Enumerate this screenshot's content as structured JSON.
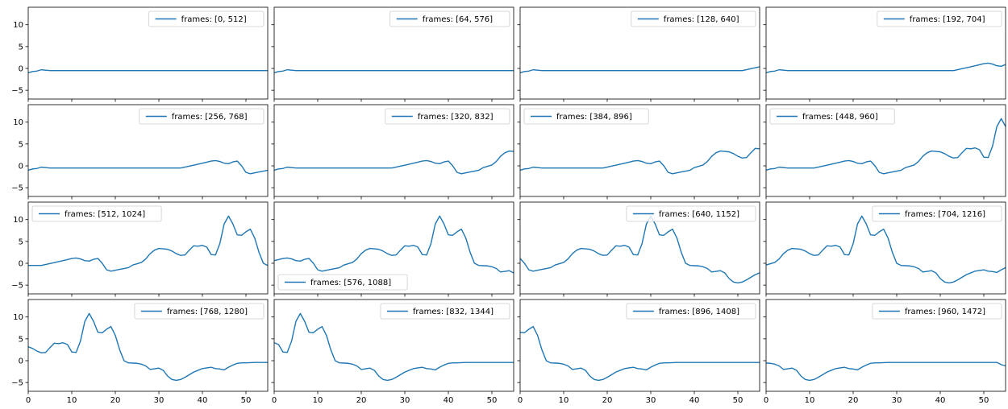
{
  "figure": {
    "rows": 4,
    "cols": 4,
    "sharex": true,
    "sharey": true,
    "line_color": "#1f77b4"
  },
  "chart_data": {
    "type": "line",
    "xlim": [
      0,
      55
    ],
    "ylim": [
      -7,
      14
    ],
    "x_ticks": [
      0,
      10,
      20,
      30,
      40,
      50
    ],
    "y_ticks": [
      -5,
      0,
      5,
      10
    ],
    "grid": false,
    "signal": [
      {
        "x": 0,
        "y": -0.5
      },
      {
        "x": 67,
        "y": -0.5
      },
      {
        "x": 72,
        "y": 0.6
      },
      {
        "x": 74,
        "y": 1.1
      },
      {
        "x": 75,
        "y": 1.2
      },
      {
        "x": 76,
        "y": 1.0
      },
      {
        "x": 77,
        "y": 0.6
      },
      {
        "x": 78,
        "y": 0.5
      },
      {
        "x": 79,
        "y": 0.9
      },
      {
        "x": 80,
        "y": 1.1
      },
      {
        "x": 81,
        "y": 0.0
      },
      {
        "x": 82,
        "y": -1.5
      },
      {
        "x": 83,
        "y": -1.8
      },
      {
        "x": 85,
        "y": -1.4
      },
      {
        "x": 87,
        "y": -1.0
      },
      {
        "x": 88,
        "y": -0.4
      },
      {
        "x": 90,
        "y": 0.2
      },
      {
        "x": 91,
        "y": 1.0
      },
      {
        "x": 92,
        "y": 2.2
      },
      {
        "x": 93,
        "y": 3.0
      },
      {
        "x": 94,
        "y": 3.4
      },
      {
        "x": 96,
        "y": 3.2
      },
      {
        "x": 97,
        "y": 2.8
      },
      {
        "x": 98,
        "y": 2.2
      },
      {
        "x": 99,
        "y": 1.8
      },
      {
        "x": 100,
        "y": 1.9
      },
      {
        "x": 101,
        "y": 3.0
      },
      {
        "x": 102,
        "y": 4.0
      },
      {
        "x": 103,
        "y": 3.9
      },
      {
        "x": 104,
        "y": 4.1
      },
      {
        "x": 105,
        "y": 3.7
      },
      {
        "x": 106,
        "y": 2.0
      },
      {
        "x": 107,
        "y": 1.9
      },
      {
        "x": 108,
        "y": 4.5
      },
      {
        "x": 109,
        "y": 9.0
      },
      {
        "x": 110,
        "y": 10.8
      },
      {
        "x": 111,
        "y": 9.0
      },
      {
        "x": 112,
        "y": 6.5
      },
      {
        "x": 113,
        "y": 6.4
      },
      {
        "x": 114,
        "y": 7.2
      },
      {
        "x": 115,
        "y": 7.8
      },
      {
        "x": 116,
        "y": 5.8
      },
      {
        "x": 117,
        "y": 2.5
      },
      {
        "x": 118,
        "y": 0.0
      },
      {
        "x": 119,
        "y": -0.5
      },
      {
        "x": 121,
        "y": -0.6
      },
      {
        "x": 122,
        "y": -0.8
      },
      {
        "x": 123,
        "y": -1.2
      },
      {
        "x": 124,
        "y": -2.0
      },
      {
        "x": 126,
        "y": -1.7
      },
      {
        "x": 127,
        "y": -2.2
      },
      {
        "x": 128,
        "y": -3.5
      },
      {
        "x": 129,
        "y": -4.3
      },
      {
        "x": 130,
        "y": -4.5
      },
      {
        "x": 131,
        "y": -4.3
      },
      {
        "x": 132,
        "y": -3.8
      },
      {
        "x": 134,
        "y": -2.6
      },
      {
        "x": 136,
        "y": -1.8
      },
      {
        "x": 138,
        "y": -1.5
      },
      {
        "x": 139,
        "y": -1.8
      },
      {
        "x": 140,
        "y": -1.9
      },
      {
        "x": 141,
        "y": -2.1
      },
      {
        "x": 142,
        "y": -1.5
      },
      {
        "x": 143,
        "y": -1.0
      },
      {
        "x": 144,
        "y": -0.6
      },
      {
        "x": 145,
        "y": -0.5
      },
      {
        "x": 146,
        "y": -0.5
      },
      {
        "x": 148,
        "y": -0.4
      },
      {
        "x": 200,
        "y": -0.4
      }
    ],
    "start": {
      "x": [
        0,
        1,
        2,
        3,
        4,
        5
      ],
      "y": [
        -1.0,
        -0.7,
        -0.6,
        -0.3,
        -0.4,
        -0.5
      ]
    },
    "end_tail": {
      "x": [
        54,
        55
      ],
      "y": [
        -0.9,
        -1.2
      ]
    },
    "panels": [
      {
        "legend": "frames: [0, 512]",
        "offset": 0,
        "legend_pos": "upper right",
        "lead_in": true
      },
      {
        "legend": "frames: [64, 576]",
        "offset": 8,
        "legend_pos": "upper right",
        "lead_in": true
      },
      {
        "legend": "frames: [128, 640]",
        "offset": 16,
        "legend_pos": "upper right",
        "lead_in": true
      },
      {
        "legend": "frames: [192, 704]",
        "offset": 24,
        "legend_pos": "upper right",
        "lead_in": true
      },
      {
        "legend": "frames: [256, 768]",
        "offset": 32,
        "legend_pos": "upper right",
        "lead_in": true
      },
      {
        "legend": "frames: [320, 832]",
        "offset": 40,
        "legend_pos": "upper right",
        "lead_in": true
      },
      {
        "legend": "frames: [384, 896]",
        "offset": 48,
        "legend_pos": "upper left",
        "lead_in": true
      },
      {
        "legend": "frames: [448, 960]",
        "offset": 56,
        "legend_pos": "upper left",
        "lead_in": true
      },
      {
        "legend": "frames: [512, 1024]",
        "offset": 64,
        "legend_pos": "upper left",
        "lead_in": false
      },
      {
        "legend": "frames: [576, 1088]",
        "offset": 72,
        "legend_pos": "lower left",
        "lead_in": false
      },
      {
        "legend": "frames: [640, 1152]",
        "offset": 80,
        "legend_pos": "upper right",
        "lead_in": false
      },
      {
        "legend": "frames: [704, 1216]",
        "offset": 88,
        "legend_pos": "upper right",
        "lead_in": false
      },
      {
        "legend": "frames: [768, 1280]",
        "offset": 96,
        "legend_pos": "upper right",
        "lead_in": false
      },
      {
        "legend": "frames: [832, 1344]",
        "offset": 104,
        "legend_pos": "upper right",
        "lead_in": false
      },
      {
        "legend": "frames: [896, 1408]",
        "offset": 112,
        "legend_pos": "upper right",
        "lead_in": false
      },
      {
        "legend": "frames: [960, 1472]",
        "offset": 120,
        "legend_pos": "upper right",
        "lead_in": false,
        "tail": true
      }
    ]
  }
}
